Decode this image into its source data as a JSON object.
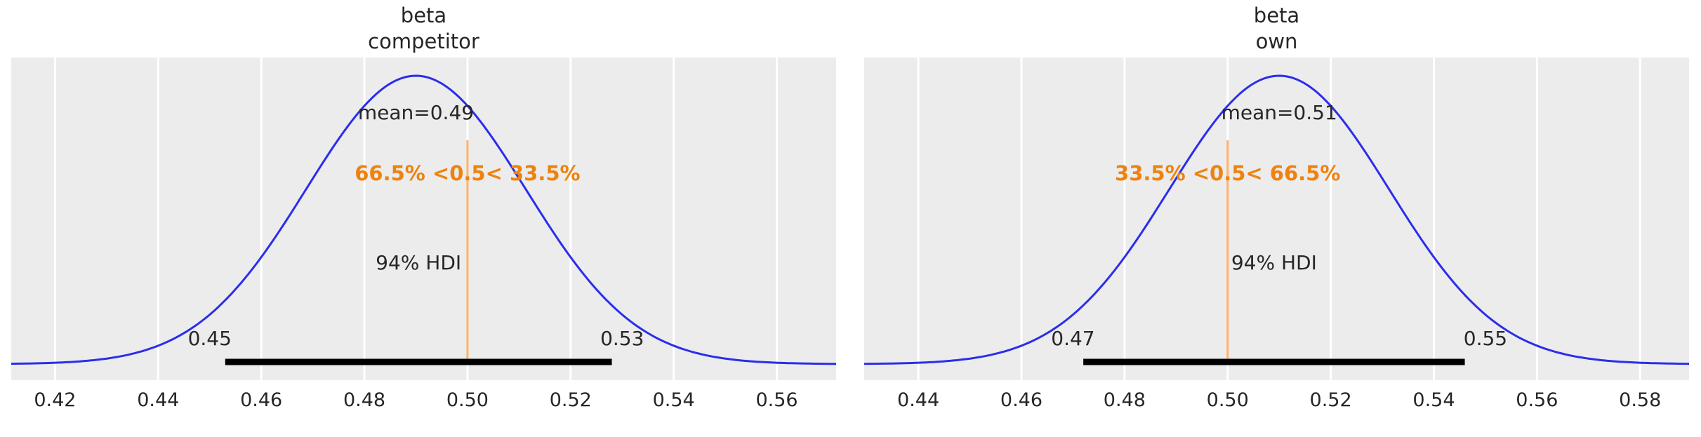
{
  "figure": {
    "background": "#ffffff",
    "panel_background": "#ececec",
    "grid_color": "#ffffff",
    "curve_color": "#2a2eec",
    "ref_line_color": "#ff7f0e",
    "ref_text_color": "#ef820e",
    "hdi_bar_color": "#000000",
    "text_color": "#262626"
  },
  "chart_data": [
    {
      "type": "line",
      "subtype": "posterior_kde",
      "title_lines": [
        "beta",
        "competitor"
      ],
      "mean": 0.49,
      "sd_est": 0.0213,
      "mean_label": "mean=0.49",
      "ref_value": 0.5,
      "ref_label": "66.5% <0.5< 33.5%",
      "hdi_label": "94% HDI",
      "hdi_interval": [
        0.453,
        0.528
      ],
      "hdi_lower_label": "0.45",
      "hdi_upper_label": "0.53",
      "xlim": [
        0.4115,
        0.5715
      ],
      "x_ticks": [
        0.42,
        0.44,
        0.46,
        0.48,
        0.5,
        0.52,
        0.54,
        0.56
      ],
      "x_tick_labels": [
        "0.42",
        "0.44",
        "0.46",
        "0.48",
        "0.50",
        "0.52",
        "0.54",
        "0.56"
      ],
      "grid": true,
      "legend": "none"
    },
    {
      "type": "line",
      "subtype": "posterior_kde",
      "title_lines": [
        "beta",
        "own"
      ],
      "mean": 0.51,
      "sd_est": 0.0213,
      "mean_label": "mean=0.51",
      "ref_value": 0.5,
      "ref_label": "33.5% <0.5< 66.5%",
      "hdi_label": "94% HDI",
      "hdi_interval": [
        0.472,
        0.546
      ],
      "hdi_lower_label": "0.47",
      "hdi_upper_label": "0.55",
      "xlim": [
        0.4295,
        0.5895
      ],
      "x_ticks": [
        0.44,
        0.46,
        0.48,
        0.5,
        0.52,
        0.54,
        0.56,
        0.58
      ],
      "x_tick_labels": [
        "0.44",
        "0.46",
        "0.48",
        "0.50",
        "0.52",
        "0.54",
        "0.56",
        "0.58"
      ],
      "grid": true,
      "legend": "none"
    }
  ]
}
